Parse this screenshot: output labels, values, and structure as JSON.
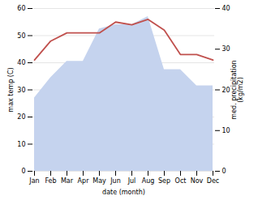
{
  "chart_data": {
    "type": "line",
    "categories": [
      "Jan",
      "Feb",
      "Mar",
      "Apr",
      "May",
      "Jun",
      "Jul",
      "Aug",
      "Sep",
      "Oct",
      "Nov",
      "Dec"
    ],
    "series": [
      {
        "type": "area",
        "axis": "y2",
        "color": "#c5d3ee",
        "values": [
          18,
          23,
          27,
          27,
          35,
          36,
          36,
          38,
          25,
          25,
          21,
          21
        ]
      },
      {
        "type": "line",
        "color": "#c0504d",
        "values": [
          41,
          48,
          51,
          51,
          51,
          55,
          54,
          56,
          52,
          43,
          43,
          41
        ]
      }
    ],
    "xlabel": "date (month)",
    "ylabel": "max temp (C)",
    "y2label": "med. precipitation\n(kg/m2)",
    "ylim": [
      0,
      60
    ],
    "yticks": [
      0,
      10,
      20,
      30,
      40,
      50,
      60
    ],
    "y2lim": [
      0,
      40
    ],
    "y2ticks": [
      0,
      10,
      20,
      30,
      40
    ],
    "grid": true
  }
}
